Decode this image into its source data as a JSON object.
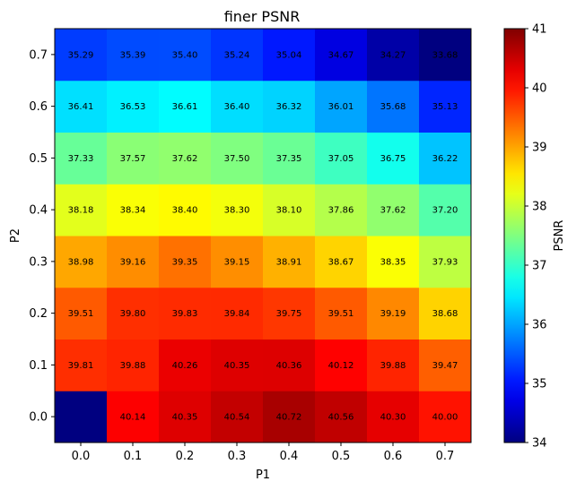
{
  "chart_data": {
    "type": "heatmap",
    "title": "finer PSNR",
    "xlabel": "P1",
    "ylabel": "P2",
    "x_categories": [
      "0.0",
      "0.1",
      "0.2",
      "0.3",
      "0.4",
      "0.5",
      "0.6",
      "0.7"
    ],
    "y_categories": [
      "0.0",
      "0.1",
      "0.2",
      "0.3",
      "0.4",
      "0.5",
      "0.6",
      "0.7"
    ],
    "colormap": "jet",
    "vmin": 34,
    "vmax": 41,
    "colorbar": {
      "label": "PSNR",
      "ticks": [
        "34",
        "35",
        "36",
        "37",
        "38",
        "39",
        "40",
        "41"
      ]
    },
    "rows": [
      {
        "y": "0.0",
        "values": [
          34.0,
          40.14,
          40.35,
          40.54,
          40.72,
          40.56,
          40.3,
          40.0
        ],
        "labels": [
          "",
          "40.14",
          "40.35",
          "40.54",
          "40.72",
          "40.56",
          "40.30",
          "40.00"
        ]
      },
      {
        "y": "0.1",
        "values": [
          39.81,
          39.88,
          40.26,
          40.35,
          40.36,
          40.12,
          39.88,
          39.47
        ],
        "labels": [
          "39.81",
          "39.88",
          "40.26",
          "40.35",
          "40.36",
          "40.12",
          "39.88",
          "39.47"
        ]
      },
      {
        "y": "0.2",
        "values": [
          39.51,
          39.8,
          39.83,
          39.84,
          39.75,
          39.51,
          39.19,
          38.68
        ],
        "labels": [
          "39.51",
          "39.80",
          "39.83",
          "39.84",
          "39.75",
          "39.51",
          "39.19",
          "38.68"
        ]
      },
      {
        "y": "0.3",
        "values": [
          38.98,
          39.16,
          39.35,
          39.15,
          38.91,
          38.67,
          38.35,
          37.93
        ],
        "labels": [
          "38.98",
          "39.16",
          "39.35",
          "39.15",
          "38.91",
          "38.67",
          "38.35",
          "37.93"
        ]
      },
      {
        "y": "0.4",
        "values": [
          38.18,
          38.34,
          38.4,
          38.3,
          38.1,
          37.86,
          37.62,
          37.2
        ],
        "labels": [
          "38.18",
          "38.34",
          "38.40",
          "38.30",
          "38.10",
          "37.86",
          "37.62",
          "37.20"
        ]
      },
      {
        "y": "0.5",
        "values": [
          37.33,
          37.57,
          37.62,
          37.5,
          37.35,
          37.05,
          36.75,
          36.22
        ],
        "labels": [
          "37.33",
          "37.57",
          "37.62",
          "37.50",
          "37.35",
          "37.05",
          "36.75",
          "36.22"
        ]
      },
      {
        "y": "0.6",
        "values": [
          36.41,
          36.53,
          36.61,
          36.4,
          36.32,
          36.01,
          35.68,
          35.13
        ],
        "labels": [
          "36.41",
          "36.53",
          "36.61",
          "36.40",
          "36.32",
          "36.01",
          "35.68",
          "35.13"
        ]
      },
      {
        "y": "0.7",
        "values": [
          35.29,
          35.39,
          35.4,
          35.24,
          35.04,
          34.67,
          34.27,
          33.68
        ],
        "labels": [
          "35.29",
          "35.39",
          "35.40",
          "35.24",
          "35.04",
          "34.67",
          "34.27",
          "33.68"
        ]
      }
    ]
  }
}
